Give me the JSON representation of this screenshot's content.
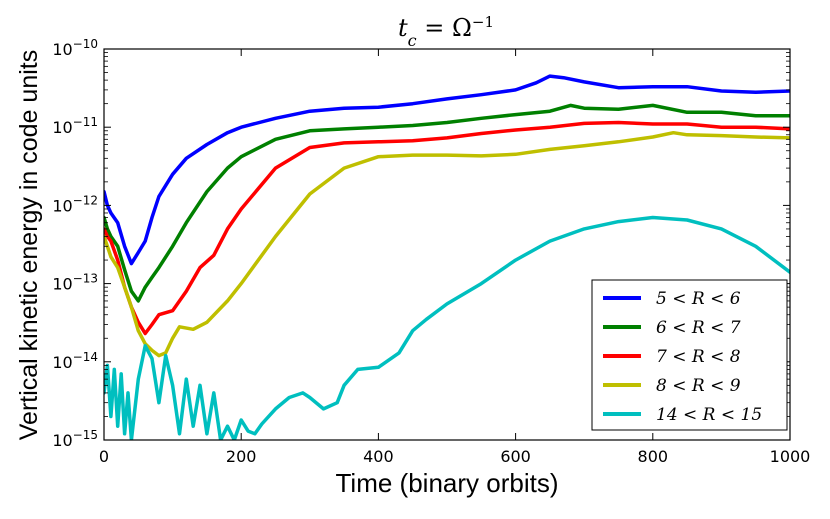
{
  "chart_data": {
    "type": "line",
    "title": "t_c = Ω^-1",
    "title_display": {
      "base": "t",
      "sub": "c",
      "mid": " = Ω",
      "sup": "−1"
    },
    "xlabel": "Time (binary orbits)",
    "ylabel": "Vertical kinetic energy in code units",
    "yscale": "log",
    "xlim": [
      0,
      1000
    ],
    "ylim": [
      1e-15,
      1e-10
    ],
    "x_ticks": [
      0,
      200,
      400,
      600,
      800,
      1000
    ],
    "x_tick_labels": [
      "0",
      "200",
      "400",
      "600",
      "800",
      "1000"
    ],
    "y_ticks": [
      1e-15,
      1e-14,
      1e-13,
      1e-12,
      1e-11,
      1e-10
    ],
    "y_tick_labels": [
      {
        "base": "10",
        "exp": "−15"
      },
      {
        "base": "10",
        "exp": "−14"
      },
      {
        "base": "10",
        "exp": "−13"
      },
      {
        "base": "10",
        "exp": "−12"
      },
      {
        "base": "10",
        "exp": "−11"
      },
      {
        "base": "10",
        "exp": "−10"
      }
    ],
    "legend_position": "lower-right",
    "series": [
      {
        "name": "5 < R < 6",
        "color": "#0000ff",
        "x": [
          0,
          5,
          10,
          20,
          30,
          40,
          50,
          60,
          70,
          80,
          100,
          120,
          150,
          180,
          200,
          250,
          300,
          350,
          400,
          450,
          500,
          550,
          600,
          630,
          650,
          670,
          700,
          750,
          800,
          850,
          900,
          950,
          1000
        ],
        "y": [
          1.5e-12,
          1e-12,
          8e-13,
          6e-13,
          3e-13,
          1.8e-13,
          2.5e-13,
          3.5e-13,
          7e-13,
          1.3e-12,
          2.5e-12,
          4e-12,
          6e-12,
          8.5e-12,
          1e-11,
          1.3e-11,
          1.6e-11,
          1.75e-11,
          1.8e-11,
          2e-11,
          2.3e-11,
          2.6e-11,
          3e-11,
          3.7e-11,
          4.5e-11,
          4.3e-11,
          3.8e-11,
          3.2e-11,
          3.3e-11,
          3.3e-11,
          2.9e-11,
          2.8e-11,
          2.9e-11
        ]
      },
      {
        "name": "6 < R < 7",
        "color": "#008000",
        "x": [
          0,
          5,
          10,
          20,
          30,
          40,
          50,
          60,
          70,
          80,
          100,
          120,
          150,
          180,
          200,
          250,
          300,
          350,
          400,
          450,
          500,
          550,
          600,
          650,
          680,
          700,
          750,
          800,
          850,
          900,
          950,
          1000
        ],
        "y": [
          7e-13,
          5e-13,
          4e-13,
          3e-13,
          1.5e-13,
          8e-14,
          6e-14,
          9e-14,
          1.2e-13,
          1.6e-13,
          3e-13,
          6e-13,
          1.5e-12,
          3e-12,
          4.2e-12,
          7e-12,
          9e-12,
          9.5e-12,
          1e-11,
          1.05e-11,
          1.15e-11,
          1.3e-11,
          1.45e-11,
          1.6e-11,
          1.9e-11,
          1.75e-11,
          1.7e-11,
          1.9e-11,
          1.55e-11,
          1.55e-11,
          1.4e-11,
          1.4e-11
        ]
      },
      {
        "name": "7 < R < 8",
        "color": "#ff0000",
        "x": [
          0,
          5,
          10,
          20,
          30,
          40,
          50,
          60,
          70,
          80,
          100,
          120,
          140,
          160,
          180,
          200,
          250,
          300,
          350,
          400,
          450,
          500,
          550,
          600,
          650,
          700,
          750,
          800,
          850,
          900,
          950,
          1000
        ],
        "y": [
          5e-13,
          4e-13,
          3.5e-13,
          2e-13,
          9e-14,
          5e-14,
          3.2e-14,
          2.3e-14,
          3e-14,
          4e-14,
          4.5e-14,
          8e-14,
          1.6e-13,
          2.3e-13,
          5e-13,
          9e-13,
          3e-12,
          5.5e-12,
          6.3e-12,
          6.5e-12,
          6.7e-12,
          7.3e-12,
          8.3e-12,
          9.2e-12,
          1e-11,
          1.12e-11,
          1.15e-11,
          1.1e-11,
          1.1e-11,
          1e-11,
          1e-11,
          9.5e-12
        ]
      },
      {
        "name": "8 < R < 9",
        "color": "#bfbf00",
        "x": [
          0,
          5,
          10,
          20,
          30,
          40,
          50,
          60,
          70,
          80,
          90,
          100,
          110,
          130,
          150,
          180,
          200,
          250,
          300,
          350,
          400,
          450,
          500,
          550,
          600,
          650,
          700,
          750,
          800,
          830,
          850,
          900,
          950,
          1000
        ],
        "y": [
          4e-13,
          3e-13,
          2.2e-13,
          1.6e-13,
          9e-14,
          5e-14,
          2.5e-14,
          1.7e-14,
          1.4e-14,
          1.2e-14,
          1.3e-14,
          2e-14,
          2.8e-14,
          2.6e-14,
          3.2e-14,
          6e-14,
          1e-13,
          4e-13,
          1.4e-12,
          3e-12,
          4.2e-12,
          4.4e-12,
          4.4e-12,
          4.3e-12,
          4.5e-12,
          5.2e-12,
          5.8e-12,
          6.5e-12,
          7.5e-12,
          8.5e-12,
          8e-12,
          7.8e-12,
          7.5e-12,
          7.3e-12
        ]
      },
      {
        "name": "14 < R < 15",
        "color": "#00bfbf",
        "x": [
          0,
          5,
          10,
          15,
          20,
          25,
          30,
          35,
          40,
          50,
          60,
          70,
          80,
          90,
          100,
          110,
          120,
          130,
          140,
          150,
          160,
          170,
          180,
          190,
          200,
          210,
          220,
          230,
          250,
          270,
          290,
          300,
          320,
          340,
          350,
          370,
          400,
          430,
          450,
          470,
          500,
          550,
          600,
          650,
          700,
          750,
          800,
          820,
          850,
          900,
          950,
          1000
        ],
        "y": [
          4e-15,
          9e-15,
          2e-15,
          8e-15,
          1.5e-15,
          7e-15,
          1.2e-15,
          4e-15,
          1e-15,
          6e-15,
          1.6e-14,
          1.1e-14,
          3e-15,
          1.2e-14,
          5e-15,
          1.2e-15,
          6e-15,
          1.5e-15,
          5e-15,
          1.2e-15,
          4e-15,
          1e-15,
          1.5e-15,
          1e-15,
          1.8e-15,
          1.3e-15,
          1.2e-15,
          1.6e-15,
          2.5e-15,
          3.5e-15,
          4e-15,
          3.5e-15,
          2.5e-15,
          3e-15,
          5e-15,
          8e-15,
          8.5e-15,
          1.3e-14,
          2.5e-14,
          3.5e-14,
          5.5e-14,
          1e-13,
          2e-13,
          3.5e-13,
          5e-13,
          6.2e-13,
          7e-13,
          6.8e-13,
          6.5e-13,
          5e-13,
          3e-13,
          1.4e-13
        ]
      }
    ]
  }
}
